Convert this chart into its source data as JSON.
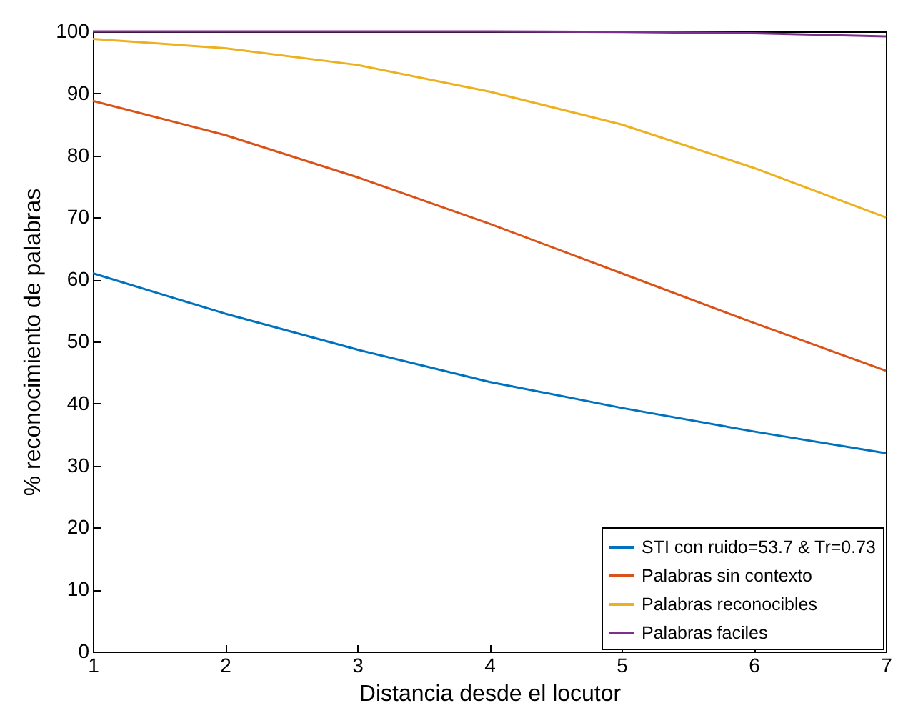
{
  "chart_data": {
    "type": "line",
    "xlabel": "Distancia desde el locutor",
    "ylabel": "% reconocimiento de palabras",
    "x": [
      1,
      2,
      3,
      4,
      5,
      6,
      7
    ],
    "series": [
      {
        "name": "STI con ruido=53.7 & Tr=0.73",
        "color": "#0072bd",
        "values": [
          61,
          54.5,
          48.7,
          43.5,
          39.3,
          35.5,
          32
        ]
      },
      {
        "name": "Palabras sin contexto",
        "color": "#d95319",
        "values": [
          88.8,
          83.3,
          76.5,
          69,
          61,
          53,
          45.3
        ]
      },
      {
        "name": "Palabras reconocibles",
        "color": "#edb120",
        "values": [
          98.8,
          97.3,
          94.6,
          90.3,
          85,
          78,
          70
        ]
      },
      {
        "name": "Palabras faciles",
        "color": "#7e2f8e",
        "values": [
          100,
          100,
          100,
          100,
          99.9,
          99.7,
          99.2
        ]
      }
    ],
    "xlim": [
      1,
      7
    ],
    "xticks": [
      1,
      2,
      3,
      4,
      5,
      6,
      7
    ],
    "ylim": [
      0,
      100
    ],
    "yticks": [
      0,
      10,
      20,
      30,
      40,
      50,
      60,
      70,
      80,
      90,
      100
    ],
    "grid": false,
    "legend": "bottom right",
    "marker": "none",
    "line_style": "solid"
  }
}
